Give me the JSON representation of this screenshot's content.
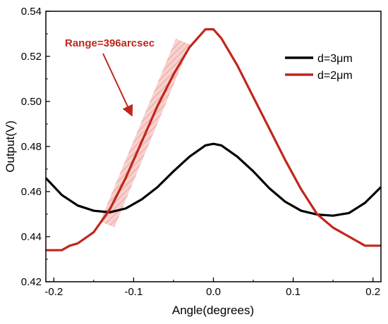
{
  "chart_data": {
    "type": "line",
    "xlabel": "Angle(degrees)",
    "ylabel": "Output(V)",
    "xlim": [
      -0.21,
      0.21
    ],
    "ylim": [
      0.42,
      0.54
    ],
    "xticks": [
      -0.2,
      -0.1,
      0.0,
      0.1,
      0.2
    ],
    "xtick_labels": [
      "-0.2",
      "-0.1",
      "0.0",
      "0.1",
      "0.2"
    ],
    "yticks": [
      0.42,
      0.44,
      0.46,
      0.48,
      0.5,
      0.52,
      0.54
    ],
    "ytick_labels": [
      "0.42",
      "0.44",
      "0.46",
      "0.48",
      "0.50",
      "0.52",
      "0.54"
    ],
    "grid": false,
    "legend_position": "top-right",
    "series": [
      {
        "name": "d=3μm",
        "color": "#000000",
        "x": [
          -0.21,
          -0.19,
          -0.17,
          -0.15,
          -0.13,
          -0.11,
          -0.09,
          -0.07,
          -0.05,
          -0.03,
          -0.01,
          0.0,
          0.01,
          0.03,
          0.05,
          0.07,
          0.09,
          0.11,
          0.13,
          0.15,
          0.17,
          0.19,
          0.21
        ],
        "y": [
          0.466,
          0.4585,
          0.4538,
          0.4515,
          0.4508,
          0.4525,
          0.4565,
          0.462,
          0.469,
          0.4755,
          0.4805,
          0.4812,
          0.4805,
          0.4755,
          0.469,
          0.4615,
          0.4555,
          0.4515,
          0.4498,
          0.4493,
          0.4505,
          0.455,
          0.462
        ]
      },
      {
        "name": "d=2μm",
        "color": "#c0261c",
        "x": [
          -0.21,
          -0.19,
          -0.18,
          -0.17,
          -0.15,
          -0.13,
          -0.11,
          -0.09,
          -0.07,
          -0.05,
          -0.03,
          -0.01,
          0.0,
          0.01,
          0.03,
          0.05,
          0.07,
          0.09,
          0.11,
          0.13,
          0.15,
          0.17,
          0.19,
          0.21
        ],
        "y": [
          0.434,
          0.434,
          0.436,
          0.437,
          0.442,
          0.452,
          0.466,
          0.482,
          0.498,
          0.512,
          0.524,
          0.532,
          0.532,
          0.528,
          0.516,
          0.502,
          0.488,
          0.474,
          0.461,
          0.45,
          0.444,
          0.44,
          0.436,
          0.436
        ]
      }
    ],
    "annotations": [
      {
        "text": "Range=396arcsec",
        "color": "#c0261c"
      }
    ]
  }
}
